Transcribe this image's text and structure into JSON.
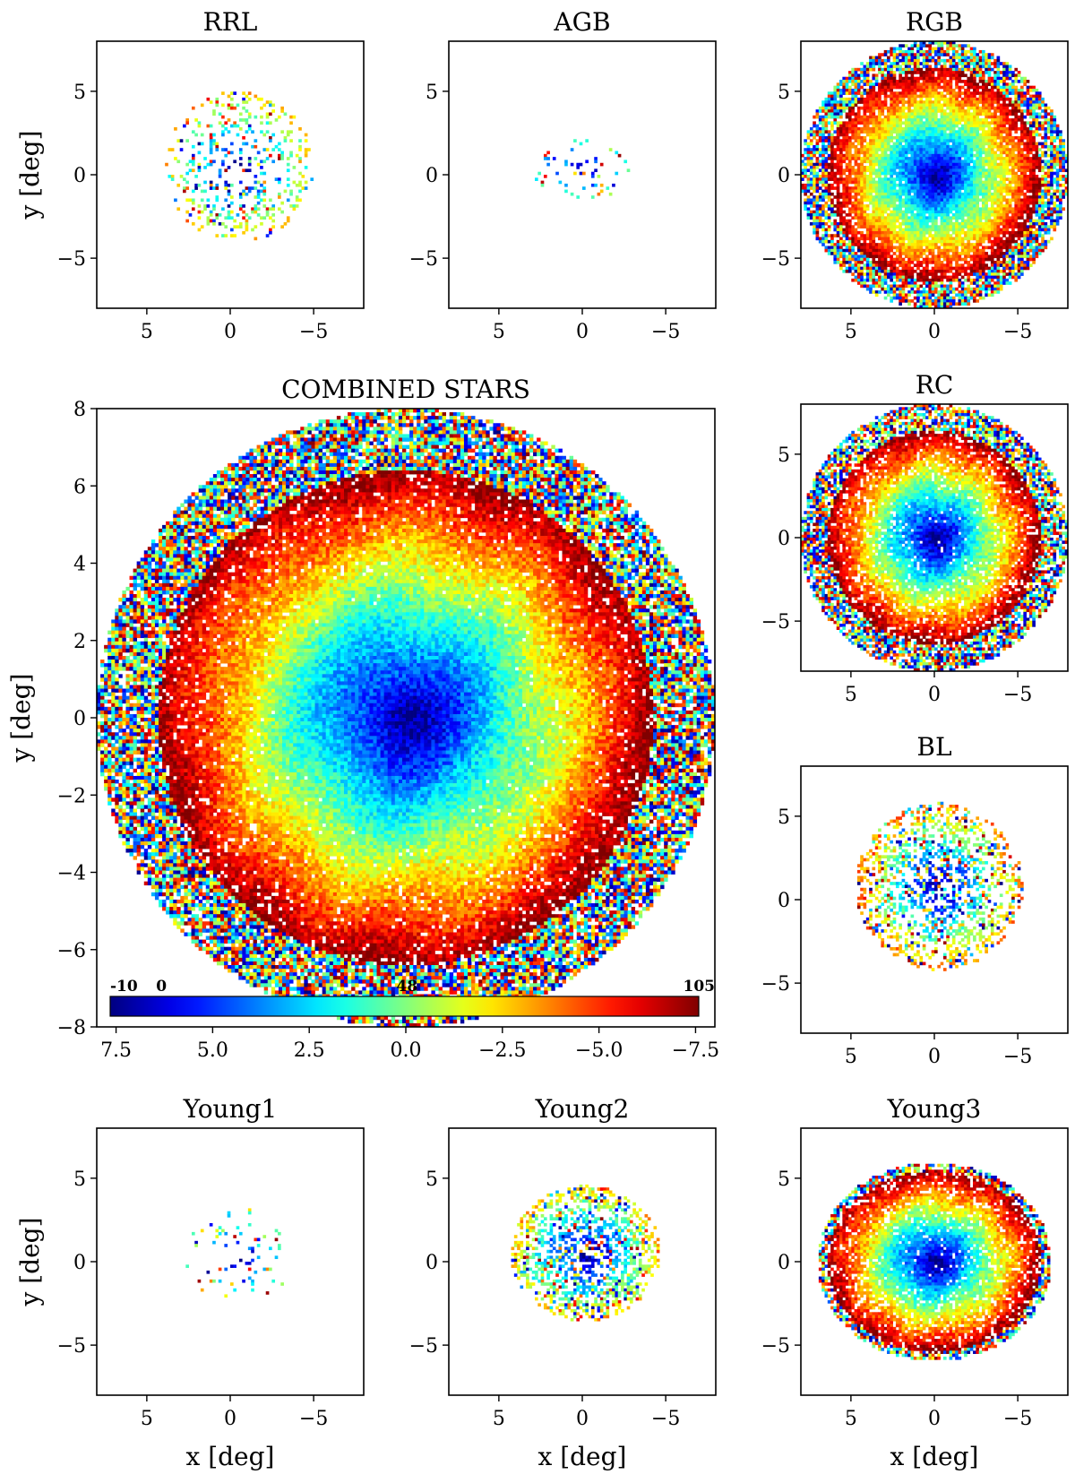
{
  "chart_data": [
    {
      "id": "rrl",
      "type": "heatmap",
      "title": "RRL",
      "xlabel": "",
      "ylabel": "y [deg]",
      "xlim": [
        8,
        -8
      ],
      "ylim": [
        -8,
        8
      ],
      "xticks": [
        "5",
        "0",
        "−5"
      ],
      "yticks": [
        "5",
        "0",
        "−5"
      ],
      "tick_values": [
        5,
        0,
        -5
      ],
      "extent_deg": 4.5,
      "center_deg": [
        -0.5,
        0.5
      ],
      "aspect": 1.0,
      "fill": 0.22,
      "density_mean": 30
    },
    {
      "id": "agb",
      "type": "heatmap",
      "title": "AGB",
      "xlabel": "",
      "ylabel": "",
      "xlim": [
        8,
        -8
      ],
      "ylim": [
        -8,
        8
      ],
      "xticks": [
        "5",
        "0",
        "−5"
      ],
      "yticks": [
        "5",
        "0",
        "−5"
      ],
      "tick_values": [
        5,
        0,
        -5
      ],
      "extent_deg": 3.0,
      "center_deg": [
        0.0,
        0.3
      ],
      "aspect": 0.6,
      "fill": 0.12,
      "density_mean": 20
    },
    {
      "id": "rgb",
      "type": "heatmap",
      "title": "RGB",
      "xlabel": "",
      "ylabel": "",
      "xlim": [
        8,
        -8
      ],
      "ylim": [
        -8,
        8
      ],
      "xticks": [
        "5",
        "0",
        "−5"
      ],
      "yticks": [
        "5",
        "0",
        "−5"
      ],
      "tick_values": [
        5,
        0,
        -5
      ],
      "extent_deg": 8.0,
      "center_deg": [
        0.0,
        0.0
      ],
      "aspect": 1.0,
      "fill": 0.95,
      "density_mean": 70
    },
    {
      "id": "combined",
      "type": "heatmap",
      "title": "COMBINED STARS",
      "xlabel": "",
      "ylabel": "y [deg]",
      "xlim": [
        8,
        -8
      ],
      "ylim": [
        -8,
        8
      ],
      "xticks": [
        "7.5",
        "5.0",
        "2.5",
        "0.0",
        "−2.5",
        "−5.0",
        "−7.5"
      ],
      "x_tick_values": [
        7.5,
        5.0,
        2.5,
        0.0,
        -2.5,
        -5.0,
        -7.5
      ],
      "yticks": [
        "8",
        "6",
        "4",
        "2",
        "0",
        "−2",
        "−4",
        "−6",
        "−8"
      ],
      "y_tick_values": [
        8,
        6,
        4,
        2,
        0,
        -2,
        -4,
        -6,
        -8
      ],
      "extent_deg": 8.0,
      "center_deg": [
        0.0,
        0.0
      ],
      "aspect": 1.0,
      "fill": 1.0,
      "density_mean": 70,
      "colorbar": {
        "labels": [
          "-10",
          "0",
          "48",
          "105"
        ],
        "values": [
          -10,
          0,
          48,
          105
        ],
        "min": -10,
        "max": 105,
        "colormap": "jet"
      }
    },
    {
      "id": "rc",
      "type": "heatmap",
      "title": "RC",
      "xlabel": "",
      "ylabel": "",
      "xlim": [
        8,
        -8
      ],
      "ylim": [
        -8,
        8
      ],
      "xticks": [
        "5",
        "0",
        "−5"
      ],
      "yticks": [
        "5",
        "0",
        "−5"
      ],
      "tick_values": [
        5,
        0,
        -5
      ],
      "extent_deg": 8.0,
      "center_deg": [
        0.0,
        0.0
      ],
      "aspect": 1.0,
      "fill": 0.9,
      "density_mean": 70
    },
    {
      "id": "bl",
      "type": "heatmap",
      "title": "BL",
      "xlabel": "",
      "ylabel": "",
      "xlim": [
        8,
        -8
      ],
      "ylim": [
        -8,
        8
      ],
      "xticks": [
        "5",
        "0",
        "−5"
      ],
      "yticks": [
        "5",
        "0",
        "−5"
      ],
      "tick_values": [
        5,
        0,
        -5
      ],
      "extent_deg": 5.0,
      "center_deg": [
        -0.3,
        0.8
      ],
      "aspect": 1.0,
      "fill": 0.45,
      "density_mean": 60
    },
    {
      "id": "young1",
      "type": "heatmap",
      "title": "Young1",
      "xlabel": "x [deg]",
      "ylabel": "y [deg]",
      "xlim": [
        8,
        -8
      ],
      "ylim": [
        -8,
        8
      ],
      "xticks": [
        "5",
        "0",
        "−5"
      ],
      "yticks": [
        "5",
        "0",
        "−5"
      ],
      "tick_values": [
        5,
        0,
        -5
      ],
      "extent_deg": 3.2,
      "center_deg": [
        -0.5,
        0.3
      ],
      "aspect": 0.9,
      "fill": 0.08,
      "density_mean": 50
    },
    {
      "id": "young2",
      "type": "heatmap",
      "title": "Young2",
      "xlabel": "x [deg]",
      "ylabel": "",
      "xlim": [
        8,
        -8
      ],
      "ylim": [
        -8,
        8
      ],
      "xticks": [
        "5",
        "0",
        "−5"
      ],
      "yticks": [
        "5",
        "0",
        "−5"
      ],
      "tick_values": [
        5,
        0,
        -5
      ],
      "extent_deg": 4.5,
      "center_deg": [
        -0.2,
        0.5
      ],
      "aspect": 0.9,
      "fill": 0.5,
      "density_mean": 65
    },
    {
      "id": "young3",
      "type": "heatmap",
      "title": "Young3",
      "xlabel": "x [deg]",
      "ylabel": "",
      "xlim": [
        8,
        -8
      ],
      "ylim": [
        -8,
        8
      ],
      "xticks": [
        "5",
        "0",
        "−5"
      ],
      "yticks": [
        "5",
        "0",
        "−5"
      ],
      "tick_values": [
        5,
        0,
        -5
      ],
      "extent_deg": 7.0,
      "center_deg": [
        0.0,
        0.0
      ],
      "aspect": 0.85,
      "fill": 0.9,
      "density_mean": 70
    }
  ]
}
